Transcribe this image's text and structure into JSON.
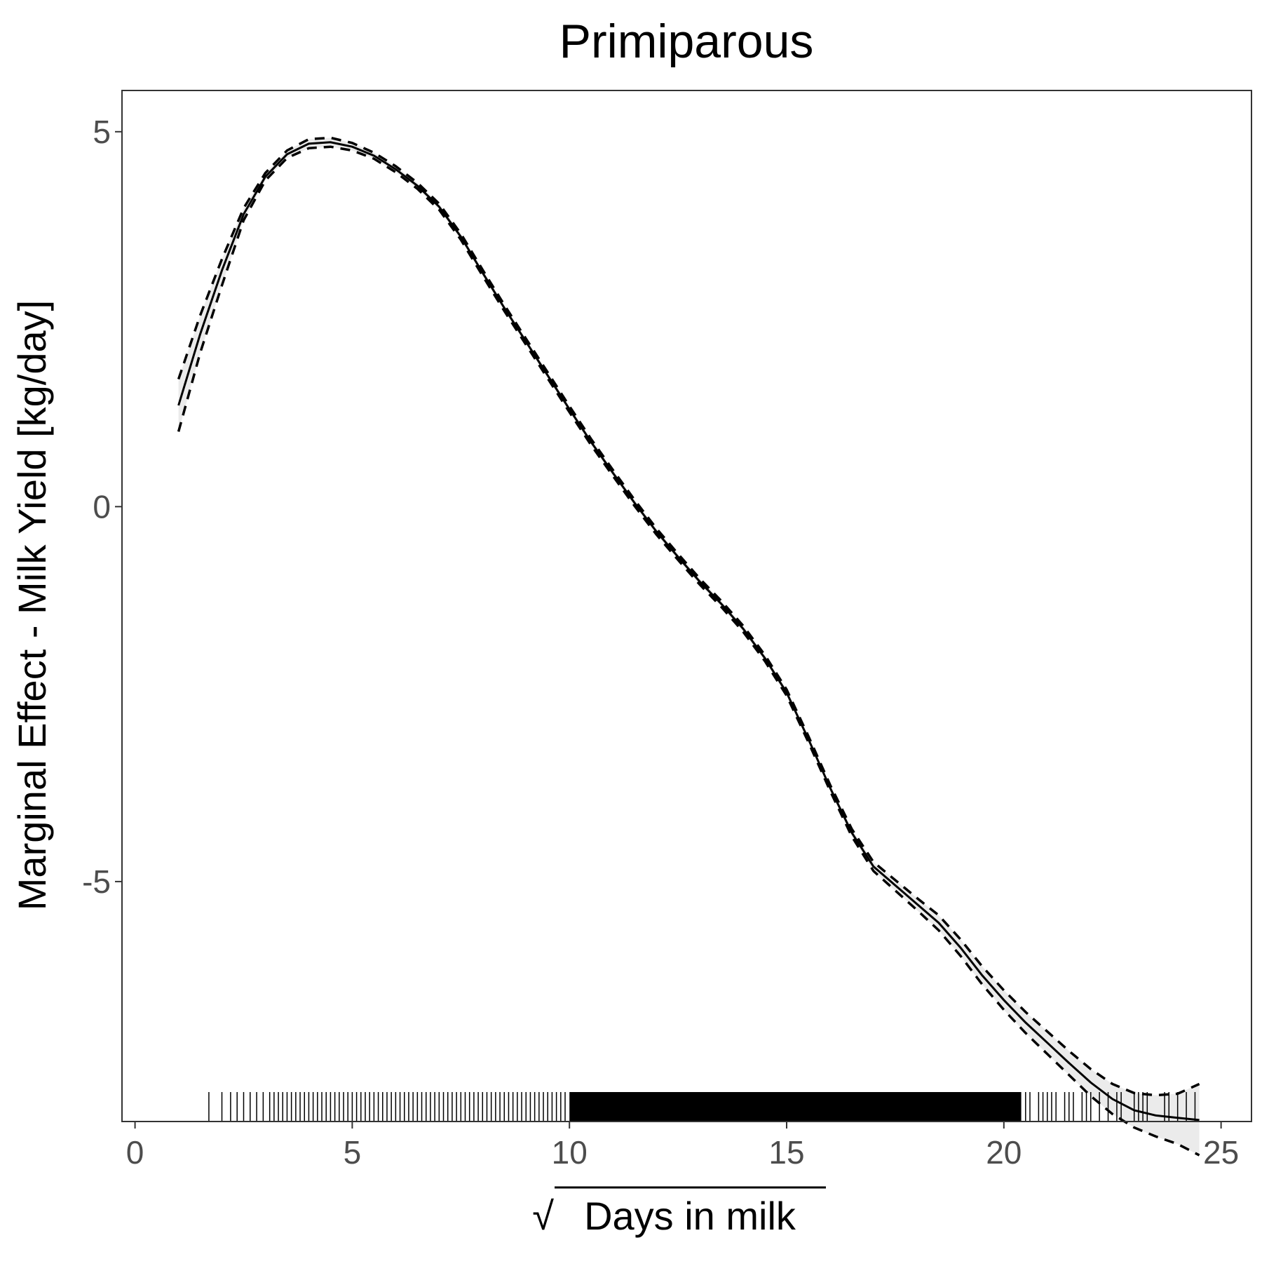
{
  "chart_data": {
    "type": "line",
    "title": "Primiparous",
    "xlabel": "Days in milk",
    "xlabel_prefix": "√",
    "ylabel": "Marginal Effect - Milk Yield [kg/day]",
    "xlim": [
      -0.3,
      25.7
    ],
    "ylim": [
      -8.2,
      5.55
    ],
    "x_ticks": [
      0,
      5,
      10,
      15,
      20,
      25
    ],
    "x_tick_labels": [
      "0",
      "5",
      "10",
      "15",
      "20",
      "25"
    ],
    "y_ticks": [
      -5,
      0,
      5
    ],
    "y_tick_labels": [
      "-5",
      "0",
      "5"
    ],
    "grid": false,
    "legend": "none",
    "colors": {
      "line": "#000000",
      "ribbon": "#ebebeb",
      "text": "#000000",
      "tick_text": "#4d4d4d",
      "panel_border": "#333333"
    },
    "series": [
      {
        "role": "estimate",
        "style": "solid",
        "x": [
          1.0,
          1.5,
          2.0,
          2.5,
          3.0,
          3.5,
          4.0,
          4.5,
          5.0,
          5.5,
          6.0,
          6.5,
          7.0,
          7.5,
          8.0,
          8.5,
          9.0,
          9.5,
          10.0,
          10.5,
          11.0,
          11.5,
          12.0,
          12.5,
          13.0,
          13.5,
          14.0,
          14.5,
          15.0,
          15.5,
          16.0,
          16.5,
          17.0,
          17.5,
          18.0,
          18.5,
          19.0,
          19.5,
          20.0,
          20.5,
          21.0,
          21.5,
          22.0,
          22.5,
          23.0,
          23.5,
          24.0,
          24.5
        ],
        "y": [
          1.35,
          2.3,
          3.15,
          3.9,
          4.4,
          4.7,
          4.84,
          4.86,
          4.8,
          4.68,
          4.5,
          4.28,
          4.0,
          3.6,
          3.12,
          2.65,
          2.2,
          1.75,
          1.3,
          0.86,
          0.45,
          0.05,
          -0.33,
          -0.67,
          -1.0,
          -1.3,
          -1.63,
          -2.02,
          -2.48,
          -3.1,
          -3.75,
          -4.35,
          -4.8,
          -5.05,
          -5.3,
          -5.55,
          -5.88,
          -6.25,
          -6.58,
          -6.88,
          -7.15,
          -7.42,
          -7.68,
          -7.9,
          -8.05,
          -8.12,
          -8.15,
          -8.18
        ]
      },
      {
        "role": "upper bound",
        "style": "dashed",
        "x": [
          1.0,
          1.5,
          2.0,
          2.5,
          3.0,
          3.5,
          4.0,
          4.5,
          5.0,
          5.5,
          6.0,
          6.5,
          7.0,
          7.5,
          8.0,
          8.5,
          9.0,
          9.5,
          10.0,
          10.5,
          11.0,
          11.5,
          12.0,
          12.5,
          13.0,
          13.5,
          14.0,
          14.5,
          15.0,
          15.5,
          16.0,
          16.5,
          17.0,
          17.5,
          18.0,
          18.5,
          19.0,
          19.5,
          20.0,
          20.5,
          21.0,
          21.5,
          22.0,
          22.5,
          23.0,
          23.5,
          24.0,
          24.5
        ],
        "y": [
          1.7,
          2.55,
          3.3,
          3.98,
          4.45,
          4.75,
          4.9,
          4.92,
          4.85,
          4.72,
          4.54,
          4.32,
          4.04,
          3.64,
          3.16,
          2.69,
          2.24,
          1.79,
          1.34,
          0.9,
          0.49,
          0.09,
          -0.29,
          -0.63,
          -0.96,
          -1.26,
          -1.59,
          -1.98,
          -2.44,
          -3.06,
          -3.71,
          -4.3,
          -4.74,
          -4.98,
          -5.22,
          -5.45,
          -5.77,
          -6.13,
          -6.45,
          -6.74,
          -7.0,
          -7.26,
          -7.5,
          -7.7,
          -7.82,
          -7.85,
          -7.83,
          -7.7
        ]
      },
      {
        "role": "lower bound",
        "style": "dashed",
        "x": [
          1.0,
          1.5,
          2.0,
          2.5,
          3.0,
          3.5,
          4.0,
          4.5,
          5.0,
          5.5,
          6.0,
          6.5,
          7.0,
          7.5,
          8.0,
          8.5,
          9.0,
          9.5,
          10.0,
          10.5,
          11.0,
          11.5,
          12.0,
          12.5,
          13.0,
          13.5,
          14.0,
          14.5,
          15.0,
          15.5,
          16.0,
          16.5,
          17.0,
          17.5,
          18.0,
          18.5,
          19.0,
          19.5,
          20.0,
          20.5,
          21.0,
          21.5,
          22.0,
          22.5,
          23.0,
          23.5,
          24.0,
          24.5
        ],
        "y": [
          1.0,
          2.05,
          2.95,
          3.82,
          4.35,
          4.65,
          4.78,
          4.8,
          4.75,
          4.64,
          4.46,
          4.24,
          3.96,
          3.56,
          3.08,
          2.61,
          2.16,
          1.71,
          1.26,
          0.82,
          0.41,
          0.01,
          -0.37,
          -0.71,
          -1.04,
          -1.34,
          -1.67,
          -2.06,
          -2.52,
          -3.14,
          -3.79,
          -4.4,
          -4.86,
          -5.12,
          -5.38,
          -5.65,
          -5.99,
          -6.37,
          -6.71,
          -7.02,
          -7.3,
          -7.58,
          -7.86,
          -8.1,
          -8.28,
          -8.4,
          -8.5,
          -8.65
        ]
      }
    ],
    "rug": {
      "x": [
        1.7,
        2.0,
        2.2,
        2.35,
        2.5,
        2.65,
        2.8,
        2.95,
        3.1,
        3.2,
        3.3,
        3.4,
        3.5,
        3.6,
        3.7,
        3.8,
        3.9,
        4.0,
        4.1,
        4.2,
        4.3,
        4.4,
        4.5,
        4.6,
        4.7,
        4.8,
        4.9,
        5.0,
        5.1,
        5.2,
        5.3,
        5.4,
        5.5,
        5.6,
        5.7,
        5.8,
        5.9,
        6.0,
        6.1,
        6.2,
        6.3,
        6.4,
        6.5,
        6.6,
        6.7,
        6.8,
        6.9,
        7.0,
        7.1,
        7.2,
        7.3,
        7.4,
        7.5,
        7.6,
        7.7,
        7.8,
        7.9,
        8.0,
        8.1,
        8.2,
        8.3,
        8.4,
        8.5,
        8.6,
        8.7,
        8.8,
        8.9,
        9.0,
        9.1,
        9.2,
        9.3,
        9.4,
        9.5,
        9.6,
        9.7,
        9.8,
        9.9,
        20.5,
        20.6,
        20.8,
        20.9,
        21.0,
        21.1,
        21.2,
        21.4,
        21.5,
        21.6,
        21.8,
        21.9,
        22.0,
        22.2,
        22.4,
        22.6,
        22.7,
        23.0,
        23.1,
        23.2,
        23.3,
        23.7,
        23.8,
        24.0,
        24.2,
        24.4
      ],
      "dense_ranges": [
        [
          10.0,
          20.4
        ]
      ]
    }
  }
}
